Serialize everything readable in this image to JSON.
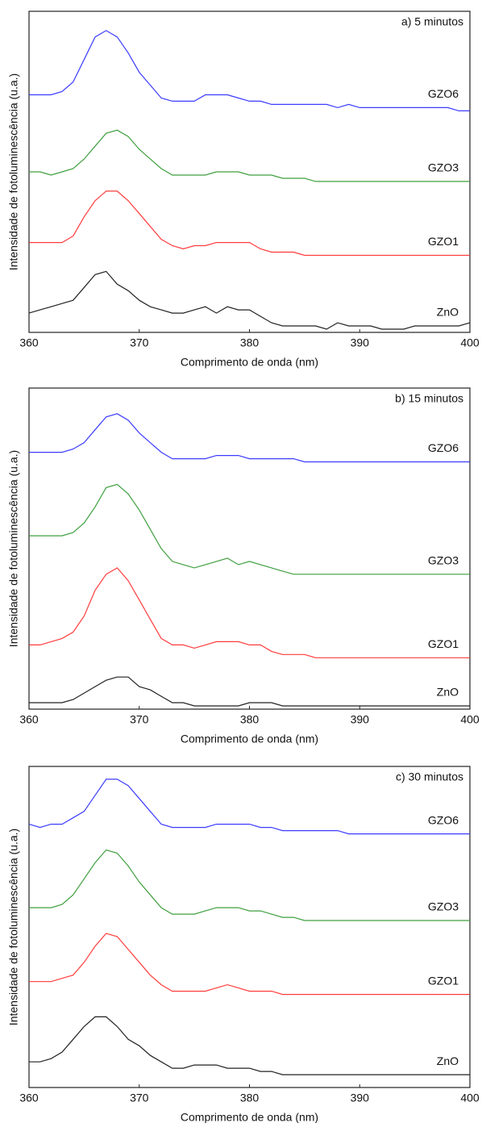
{
  "chart_data": [
    {
      "type": "line",
      "title": "a) 5 minutos",
      "xlabel": "Comprimento de onda (nm)",
      "ylabel": "Intensidade de fotoluminescência (u.a.)",
      "x": [
        360,
        361,
        362,
        363,
        364,
        365,
        366,
        367,
        368,
        369,
        370,
        371,
        372,
        373,
        374,
        375,
        376,
        377,
        378,
        379,
        380,
        381,
        382,
        383,
        384,
        385,
        386,
        387,
        388,
        389,
        390,
        391,
        392,
        393,
        394,
        395,
        396,
        397,
        398,
        399,
        400
      ],
      "xlim": [
        360,
        400
      ],
      "xticks": [
        360,
        370,
        380,
        390,
        400
      ],
      "ylim": [
        0,
        100
      ],
      "series": [
        {
          "name": "GZO6",
          "color": "#3c3cff",
          "values": [
            74,
            74,
            74,
            75,
            78,
            85,
            92,
            94,
            92,
            87,
            81,
            77,
            73,
            72,
            72,
            72,
            74,
            74,
            74,
            73,
            72,
            72,
            71,
            71,
            71,
            71,
            71,
            71,
            70,
            71,
            70,
            70,
            70,
            70,
            70,
            70,
            70,
            70,
            70,
            69,
            69
          ]
        },
        {
          "name": "GZO3",
          "color": "#3f9f3f",
          "values": [
            50,
            50,
            49,
            50,
            51,
            54,
            58,
            62,
            63,
            61,
            57,
            54,
            51,
            49,
            49,
            49,
            49,
            50,
            50,
            50,
            49,
            49,
            49,
            48,
            48,
            48,
            47,
            47,
            47,
            47,
            47,
            47,
            47,
            47,
            47,
            47,
            47,
            47,
            47,
            47,
            47
          ]
        },
        {
          "name": "GZO1",
          "color": "#ff3c3c",
          "values": [
            28,
            28,
            28,
            28,
            30,
            36,
            41,
            44,
            44,
            41,
            37,
            33,
            29,
            27,
            26,
            27,
            27,
            28,
            28,
            28,
            28,
            26,
            25,
            25,
            25,
            24,
            24,
            24,
            24,
            24,
            24,
            24,
            24,
            24,
            24,
            24,
            24,
            24,
            24,
            24,
            24
          ]
        },
        {
          "name": "ZnO",
          "color": "#222222",
          "values": [
            6,
            7,
            8,
            9,
            10,
            14,
            18,
            19,
            15,
            13,
            10,
            8,
            7,
            6,
            6,
            7,
            8,
            6,
            8,
            7,
            7,
            5,
            3,
            2,
            2,
            2,
            2,
            1,
            3,
            2,
            2,
            2,
            1,
            1,
            1,
            2,
            2,
            2,
            2,
            2,
            3
          ]
        }
      ]
    },
    {
      "type": "line",
      "title": "b) 15 minutos",
      "xlabel": "Comprimento de onda (nm)",
      "ylabel": "Intensidade de fotoluminescência (u.a.)",
      "x": [
        360,
        361,
        362,
        363,
        364,
        365,
        366,
        367,
        368,
        369,
        370,
        371,
        372,
        373,
        374,
        375,
        376,
        377,
        378,
        379,
        380,
        381,
        382,
        383,
        384,
        385,
        386,
        387,
        388,
        389,
        390,
        391,
        392,
        393,
        394,
        395,
        396,
        397,
        398,
        399,
        400
      ],
      "xlim": [
        360,
        400
      ],
      "xticks": [
        360,
        370,
        380,
        390,
        400
      ],
      "ylim": [
        0,
        100
      ],
      "series": [
        {
          "name": "GZO6",
          "color": "#3c3cff",
          "values": [
            80,
            80,
            80,
            80,
            81,
            83,
            87,
            91,
            92,
            90,
            86,
            83,
            80,
            78,
            78,
            78,
            78,
            79,
            79,
            79,
            78,
            78,
            78,
            78,
            78,
            77,
            77,
            77,
            77,
            77,
            77,
            77,
            77,
            77,
            77,
            77,
            77,
            77,
            77,
            77,
            77
          ]
        },
        {
          "name": "GZO3",
          "color": "#3f9f3f",
          "values": [
            54,
            54,
            54,
            54,
            55,
            58,
            63,
            69,
            70,
            67,
            62,
            56,
            50,
            46,
            45,
            44,
            45,
            46,
            47,
            45,
            46,
            45,
            44,
            43,
            42,
            42,
            42,
            42,
            42,
            42,
            42,
            42,
            42,
            42,
            42,
            42,
            42,
            42,
            42,
            42,
            42
          ]
        },
        {
          "name": "GZO1",
          "color": "#ff3c3c",
          "values": [
            20,
            20,
            21,
            22,
            24,
            29,
            37,
            42,
            44,
            40,
            34,
            28,
            22,
            20,
            20,
            19,
            20,
            21,
            21,
            21,
            20,
            20,
            18,
            17,
            17,
            17,
            16,
            16,
            16,
            16,
            16,
            16,
            16,
            16,
            16,
            16,
            16,
            16,
            16,
            16,
            16
          ]
        },
        {
          "name": "ZnO",
          "color": "#222222",
          "values": [
            2,
            2,
            2,
            2,
            3,
            5,
            7,
            9,
            10,
            10,
            7,
            6,
            4,
            2,
            2,
            1,
            1,
            1,
            1,
            1,
            2,
            2,
            2,
            1,
            1,
            1,
            1,
            1,
            1,
            1,
            1,
            1,
            1,
            1,
            1,
            1,
            1,
            1,
            1,
            1,
            1
          ]
        }
      ]
    },
    {
      "type": "line",
      "title": "c) 30 minutos",
      "xlabel": "Comprimento de onda (nm)",
      "ylabel": "Intensidade de fotoluminescência (u.a.)",
      "x": [
        360,
        361,
        362,
        363,
        364,
        365,
        366,
        367,
        368,
        369,
        370,
        371,
        372,
        373,
        374,
        375,
        376,
        377,
        378,
        379,
        380,
        381,
        382,
        383,
        384,
        385,
        386,
        387,
        388,
        389,
        390,
        391,
        392,
        393,
        394,
        395,
        396,
        397,
        398,
        399,
        400
      ],
      "xlim": [
        360,
        400
      ],
      "xticks": [
        360,
        370,
        380,
        390,
        400
      ],
      "ylim": [
        0,
        100
      ],
      "series": [
        {
          "name": "GZO6",
          "color": "#3c3cff",
          "values": [
            82,
            81,
            82,
            82,
            84,
            86,
            91,
            96,
            96,
            94,
            90,
            86,
            82,
            81,
            81,
            81,
            81,
            82,
            82,
            82,
            82,
            81,
            81,
            80,
            80,
            80,
            80,
            80,
            80,
            79,
            79,
            79,
            79,
            79,
            79,
            79,
            79,
            79,
            79,
            79,
            79
          ]
        },
        {
          "name": "GZO3",
          "color": "#3f9f3f",
          "values": [
            56,
            56,
            56,
            57,
            60,
            65,
            70,
            74,
            73,
            69,
            64,
            60,
            56,
            54,
            54,
            54,
            55,
            56,
            56,
            56,
            55,
            55,
            54,
            53,
            53,
            52,
            52,
            52,
            52,
            52,
            52,
            52,
            52,
            52,
            52,
            52,
            52,
            52,
            52,
            52,
            52
          ]
        },
        {
          "name": "GZO1",
          "color": "#ff3c3c",
          "values": [
            33,
            33,
            33,
            34,
            35,
            39,
            44,
            48,
            47,
            43,
            39,
            35,
            32,
            30,
            30,
            30,
            30,
            31,
            32,
            31,
            30,
            30,
            30,
            29,
            29,
            29,
            29,
            29,
            29,
            29,
            29,
            29,
            29,
            29,
            29,
            29,
            29,
            29,
            29,
            29,
            29
          ]
        },
        {
          "name": "ZnO",
          "color": "#222222",
          "values": [
            8,
            8,
            9,
            11,
            15,
            19,
            22,
            22,
            19,
            15,
            13,
            10,
            8,
            6,
            6,
            7,
            7,
            7,
            6,
            6,
            6,
            5,
            5,
            4,
            4,
            4,
            4,
            4,
            4,
            4,
            4,
            4,
            4,
            4,
            4,
            4,
            4,
            4,
            4,
            4,
            4
          ]
        }
      ]
    }
  ]
}
